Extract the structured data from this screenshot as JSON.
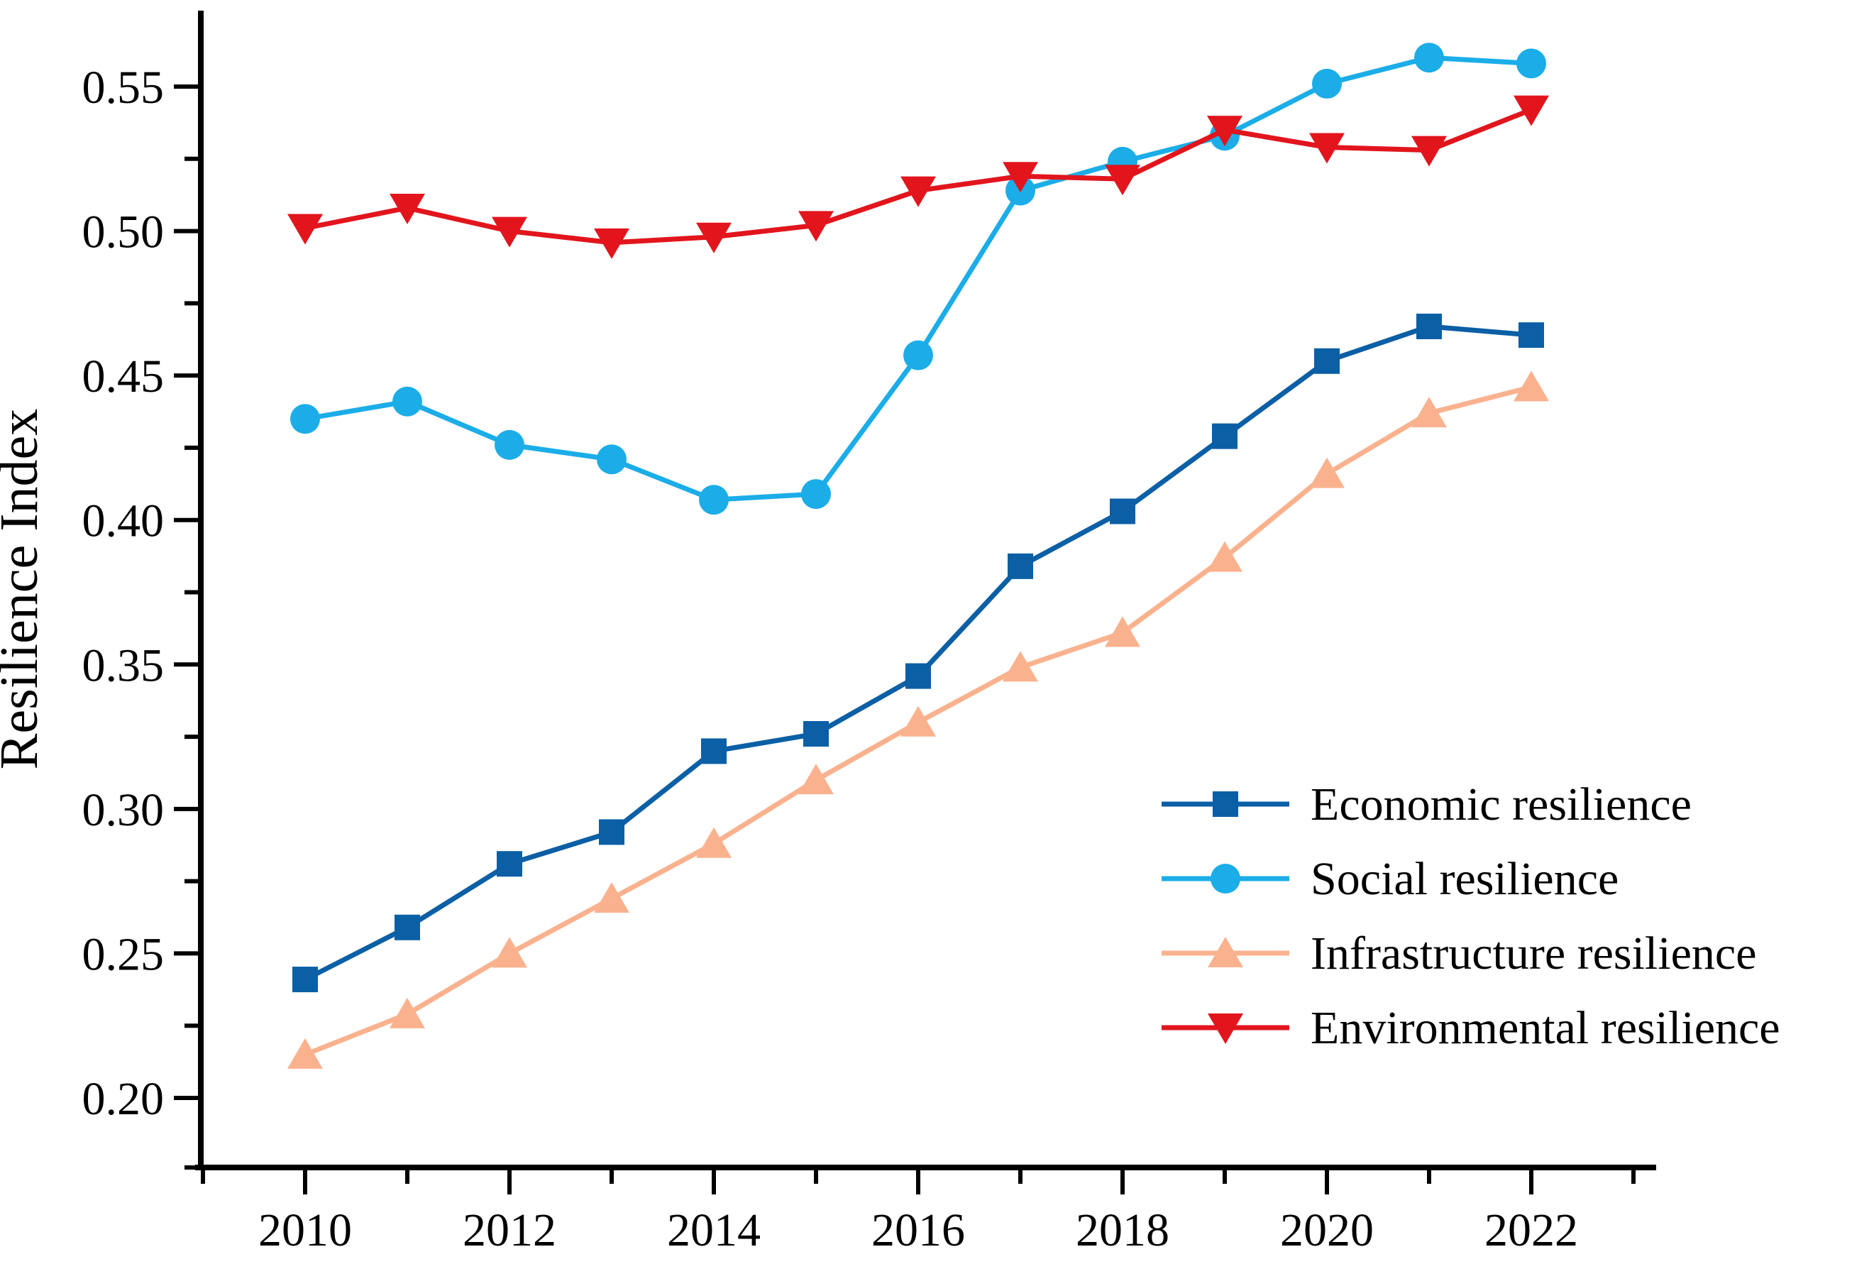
{
  "chart_data": {
    "type": "line",
    "title": "",
    "xlabel": "",
    "ylabel": "Resilience Index",
    "x": [
      2010,
      2011,
      2012,
      2013,
      2014,
      2015,
      2016,
      2017,
      2018,
      2019,
      2020,
      2021,
      2022
    ],
    "x_major_ticks": [
      2010,
      2012,
      2014,
      2016,
      2018,
      2020,
      2022
    ],
    "x_major_tick_labels": [
      "2010",
      "2012",
      "2014",
      "2016",
      "2018",
      "2020",
      "2022"
    ],
    "x_minor_ticks": [
      2009,
      2011,
      2013,
      2015,
      2017,
      2019,
      2021,
      2023
    ],
    "y_major_ticks": [
      0.2,
      0.25,
      0.3,
      0.35,
      0.4,
      0.45,
      0.5,
      0.55
    ],
    "y_major_tick_labels": [
      "0.20",
      "0.25",
      "0.30",
      "0.35",
      "0.40",
      "0.45",
      "0.50",
      "0.55"
    ],
    "y_minor_ticks": [
      0.175,
      0.225,
      0.275,
      0.325,
      0.375,
      0.425,
      0.475,
      0.525
    ],
    "ylim": [
      0.176,
      0.576
    ],
    "xlim": [
      2008.9,
      2023.2
    ],
    "grid": false,
    "frame": "left-bottom-only",
    "axis_color": "#000000",
    "background": "#ffffff",
    "legend_position": "lower right",
    "series": [
      {
        "name": "Economic resilience",
        "marker": "square",
        "color": "#0B5FA5",
        "values": [
          0.241,
          0.259,
          0.281,
          0.292,
          0.32,
          0.326,
          0.346,
          0.384,
          0.403,
          0.429,
          0.455,
          0.467,
          0.464
        ]
      },
      {
        "name": "Social resilience",
        "marker": "circle",
        "color": "#1BADE8",
        "values": [
          0.435,
          0.441,
          0.426,
          0.421,
          0.407,
          0.409,
          0.457,
          0.514,
          0.524,
          0.533,
          0.551,
          0.56,
          0.558
        ]
      },
      {
        "name": "Infrastructure resilience",
        "marker": "triangle-up",
        "color": "#FAB28E",
        "values": [
          0.215,
          0.229,
          0.25,
          0.269,
          0.288,
          0.31,
          0.33,
          0.349,
          0.361,
          0.387,
          0.416,
          0.437,
          0.446
        ]
      },
      {
        "name": "Environmental resilience",
        "marker": "triangle-down",
        "color": "#E2151D",
        "values": [
          0.501,
          0.508,
          0.5,
          0.496,
          0.498,
          0.502,
          0.514,
          0.519,
          0.518,
          0.535,
          0.529,
          0.528,
          0.542
        ]
      }
    ]
  }
}
